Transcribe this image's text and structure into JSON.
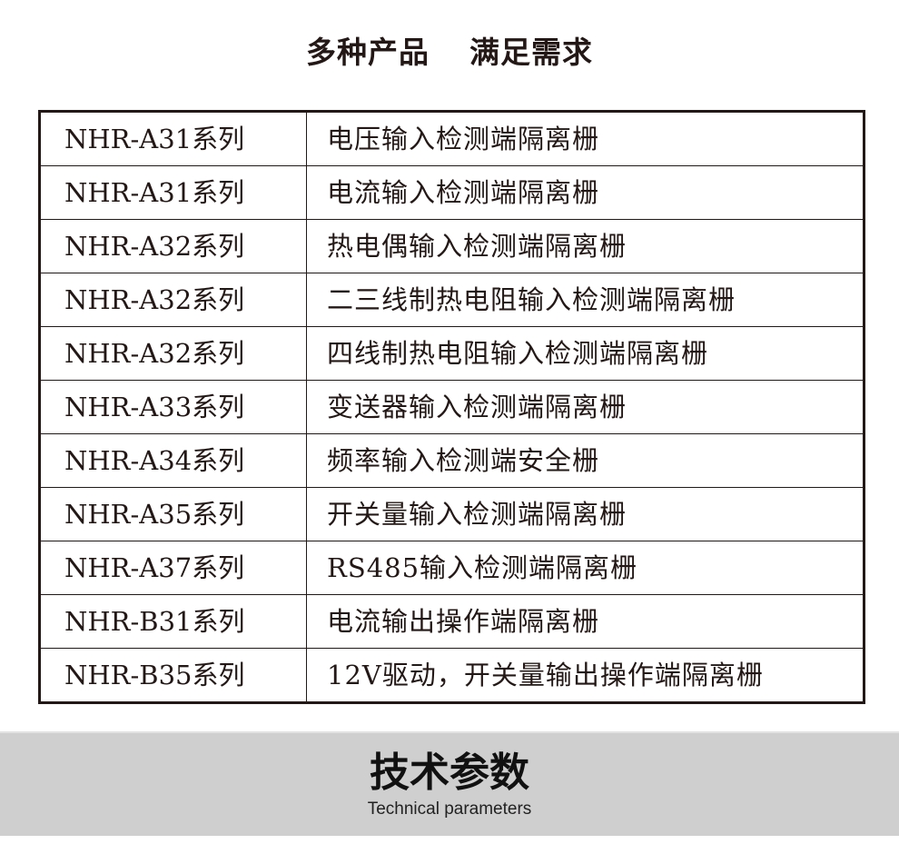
{
  "header": {
    "title_left": "多种产品",
    "title_right": "满足需求"
  },
  "rows": [
    {
      "model": "NHR-A31系列",
      "desc": "电压输入检测端隔离栅"
    },
    {
      "model": "NHR-A31系列",
      "desc": "电流输入检测端隔离栅"
    },
    {
      "model": "NHR-A32系列",
      "desc": "热电偶输入检测端隔离栅"
    },
    {
      "model": "NHR-A32系列",
      "desc": "二三线制热电阻输入检测端隔离栅"
    },
    {
      "model": "NHR-A32系列",
      "desc": "四线制热电阻输入检测端隔离栅"
    },
    {
      "model": "NHR-A33系列",
      "desc": "变送器输入检测端隔离栅"
    },
    {
      "model": "NHR-A34系列",
      "desc": "频率输入检测端安全栅"
    },
    {
      "model": "NHR-A35系列",
      "desc": "开关量输入检测端隔离栅"
    },
    {
      "model": "NHR-A37系列",
      "desc": "RS485输入检测端隔离栅"
    },
    {
      "model": "NHR-B31系列",
      "desc": "电流输出操作端隔离栅"
    },
    {
      "model": "NHR-B35系列",
      "desc": "12V驱动，开关量输出操作端隔离栅"
    }
  ],
  "section": {
    "title": "技术参数",
    "subtitle": "Technical parameters"
  }
}
